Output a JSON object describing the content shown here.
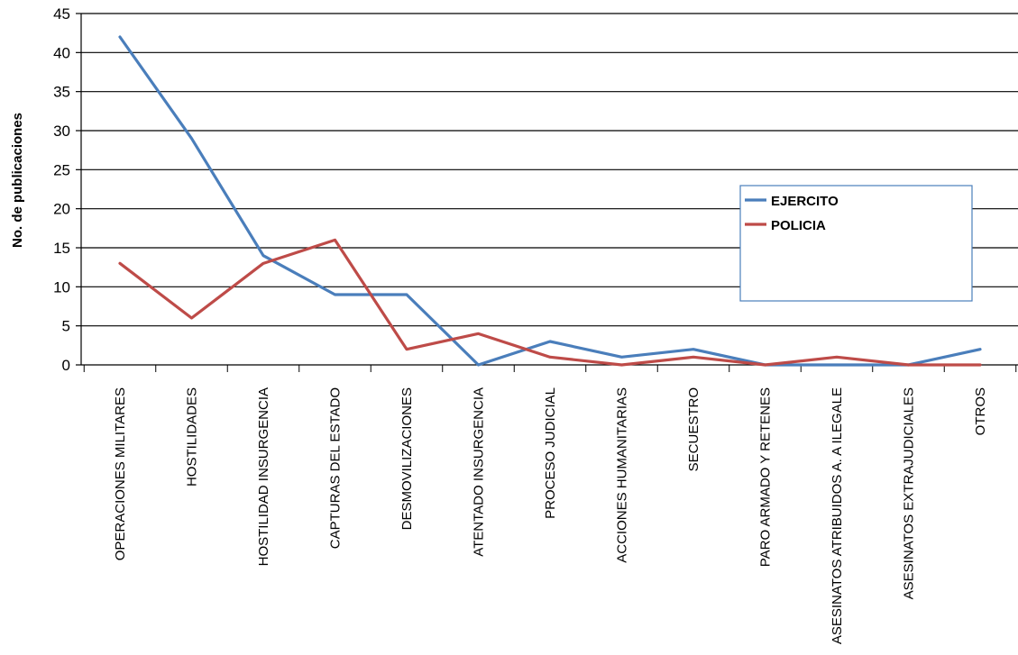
{
  "chart_data": {
    "type": "line",
    "title": "",
    "xlabel": "",
    "ylabel": "No. de publicaciones",
    "ylim": [
      0,
      45
    ],
    "yticks": [
      0,
      5,
      10,
      15,
      20,
      25,
      30,
      35,
      40,
      45
    ],
    "grid": true,
    "legend": "right",
    "categories": [
      "OPERACIONES MILITARES",
      "HOSTILIDADES",
      "HOSTILIDAD INSURGENCIA",
      "CAPTURAS DEL ESTADO",
      "DESMOVILIZACIONES",
      "ATENTADO INSURGENCIA",
      "PROCESO JUDICIAL",
      "ACCIONES HUMANITARIAS",
      "SECUESTRO",
      "PARO ARMADO Y RETENES",
      "ASESINATOS ATRIBUIDOS A. A ILEGALE",
      "ASESINATOS EXTRAJUDICIALES",
      "OTROS"
    ],
    "series": [
      {
        "name": "EJERCITO",
        "color": "#4a7ebb",
        "values": [
          42,
          29,
          14,
          9,
          9,
          0,
          3,
          1,
          2,
          0,
          0,
          0,
          2
        ]
      },
      {
        "name": "POLICIA",
        "color": "#be4b48",
        "values": [
          13,
          6,
          13,
          16,
          2,
          4,
          1,
          0,
          1,
          0,
          1,
          0,
          0
        ]
      }
    ]
  }
}
